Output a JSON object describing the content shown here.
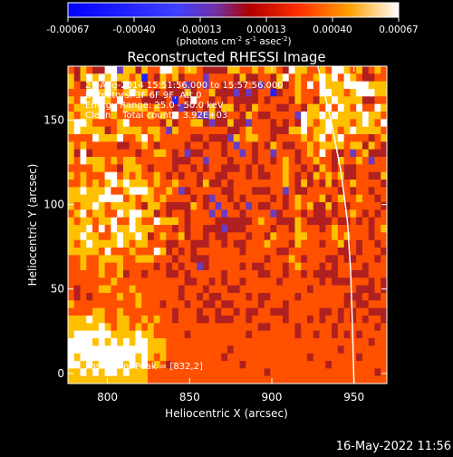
{
  "chart_data": {
    "type": "heatmap",
    "title": "Reconstructed RHESSI Image",
    "xlabel": "Heliocentric X (arcsec)",
    "ylabel": "Heliocentric Y (arcsec)",
    "xlim": [
      776,
      970
    ],
    "ylim": [
      -6,
      182
    ],
    "x_ticks": [
      800,
      850,
      900,
      950
    ],
    "y_ticks": [
      0,
      50,
      100,
      150
    ],
    "colorbar": {
      "ticks": [
        "-0.00067",
        "-0.00040",
        "-0.00013",
        "0.00013",
        "0.00040",
        "0.00067"
      ],
      "range": [
        -0.00067,
        0.00067
      ],
      "units_prefix": "(photons cm",
      "units_sup1": "-2",
      "units_mid1": " s",
      "units_sup2": "-1",
      "units_mid2": " asec",
      "units_sup3": "-2",
      "units_suffix": ")"
    },
    "info_lines": [
      "27-Aug-2014 15:51:56.000 to 15:57:56.000",
      "Detectors: 3F 6F 9F, Att 0",
      "Energy Range: 25.0 - 50.0 keV",
      "Clean    Total counts: 3.92E+03"
    ],
    "peak_label": "Position of Peak = [832,2]",
    "peak_position": [
      832,
      2
    ],
    "limb_circle": "white",
    "colormap": [
      "#00008b",
      "#2020ff",
      "#6a3cc0",
      "#b02020",
      "#ff5000",
      "#ffc000",
      "#ffffff"
    ],
    "intensity_grid_rows": [
      "5465447736646557765665444466556566547665565776564565",
      "6467676766562546564555355554644554675655686757654455",
      "6546758647664556445345355454454354645658576667777666",
      "5557767656766545444645564443434552455655577665677766",
      "6576776575554444525475545454444545554655466766664455",
      "5666675756666565543445464664546555445546657576575576",
      "6566675655555656575553364455465445555376676766667665",
      "6776555567555554645566434464435554545476567666567657",
      "6766664566665665365555555544565554446675667656766665",
      "5555766675567565555544544436566554555565675675555456",
      "6565555544556545555455455453554546544556566665664654",
      "6474555555545566545344555455354553555456575445356444",
      "6576665656655555544455355545554554565455655465565355",
      "5555665546665455545545455444545455565545465454455555",
      "6565557756565565454554554455545445565454656564455446",
      "5565656767666565565554644545555555565464546455655554",
      "6676667556777655653455555445554445535445555545455455",
      "6666677775656656555545435545455554545655564565565545",
      "6566765666654665444465453554535445545656446454555554",
      "5675665576776645455455535355455553455545445455654545",
      "6566566755765576665455554444445655444654444544545455",
      "6667575766866655545455444344455554554655545655555456",
      "6676655676676456556455454455545546555665555656555455",
      "6567666676566555445544455454455565554655545564545545",
      "6666657555655576454545555555455555445555555544545554",
      "5565566665566655545544455555555545556545554454455545",
      "5565565565555545454553455555454455545655545455554555",
      "5555565564554555445455555455555445545545444455444555",
      "5555555655555555555445545455455555455555545444555454",
      "5455566555655555554555455544555555555554555555544454",
      "5454555565565555554554544555545445555455555554445445",
      "6555555555565554555455445445555455545555555554544555",
      "5555665565555555545554554554544554445555544545455444",
      "6667665566556565545554454445545555545554545545454554",
      "6666676566565655555555555555555445555455555455555545",
      "6777777666676655555455555555545555555455455454545555",
      "7777676767677666555555555555555555555555555555555455",
      "7777777777777666555555555545555555555555555545555555",
      "7677777777767656555555555455555555555554555555545555",
      "7767677776767565455555555555455555555555554555555555",
      "6676767767666555555555555555555545555555555555555545",
      "6666666666666555555555555555555555555555555555555555"
    ]
  },
  "footer": {
    "timestamp": "16-May-2022 11:56"
  }
}
